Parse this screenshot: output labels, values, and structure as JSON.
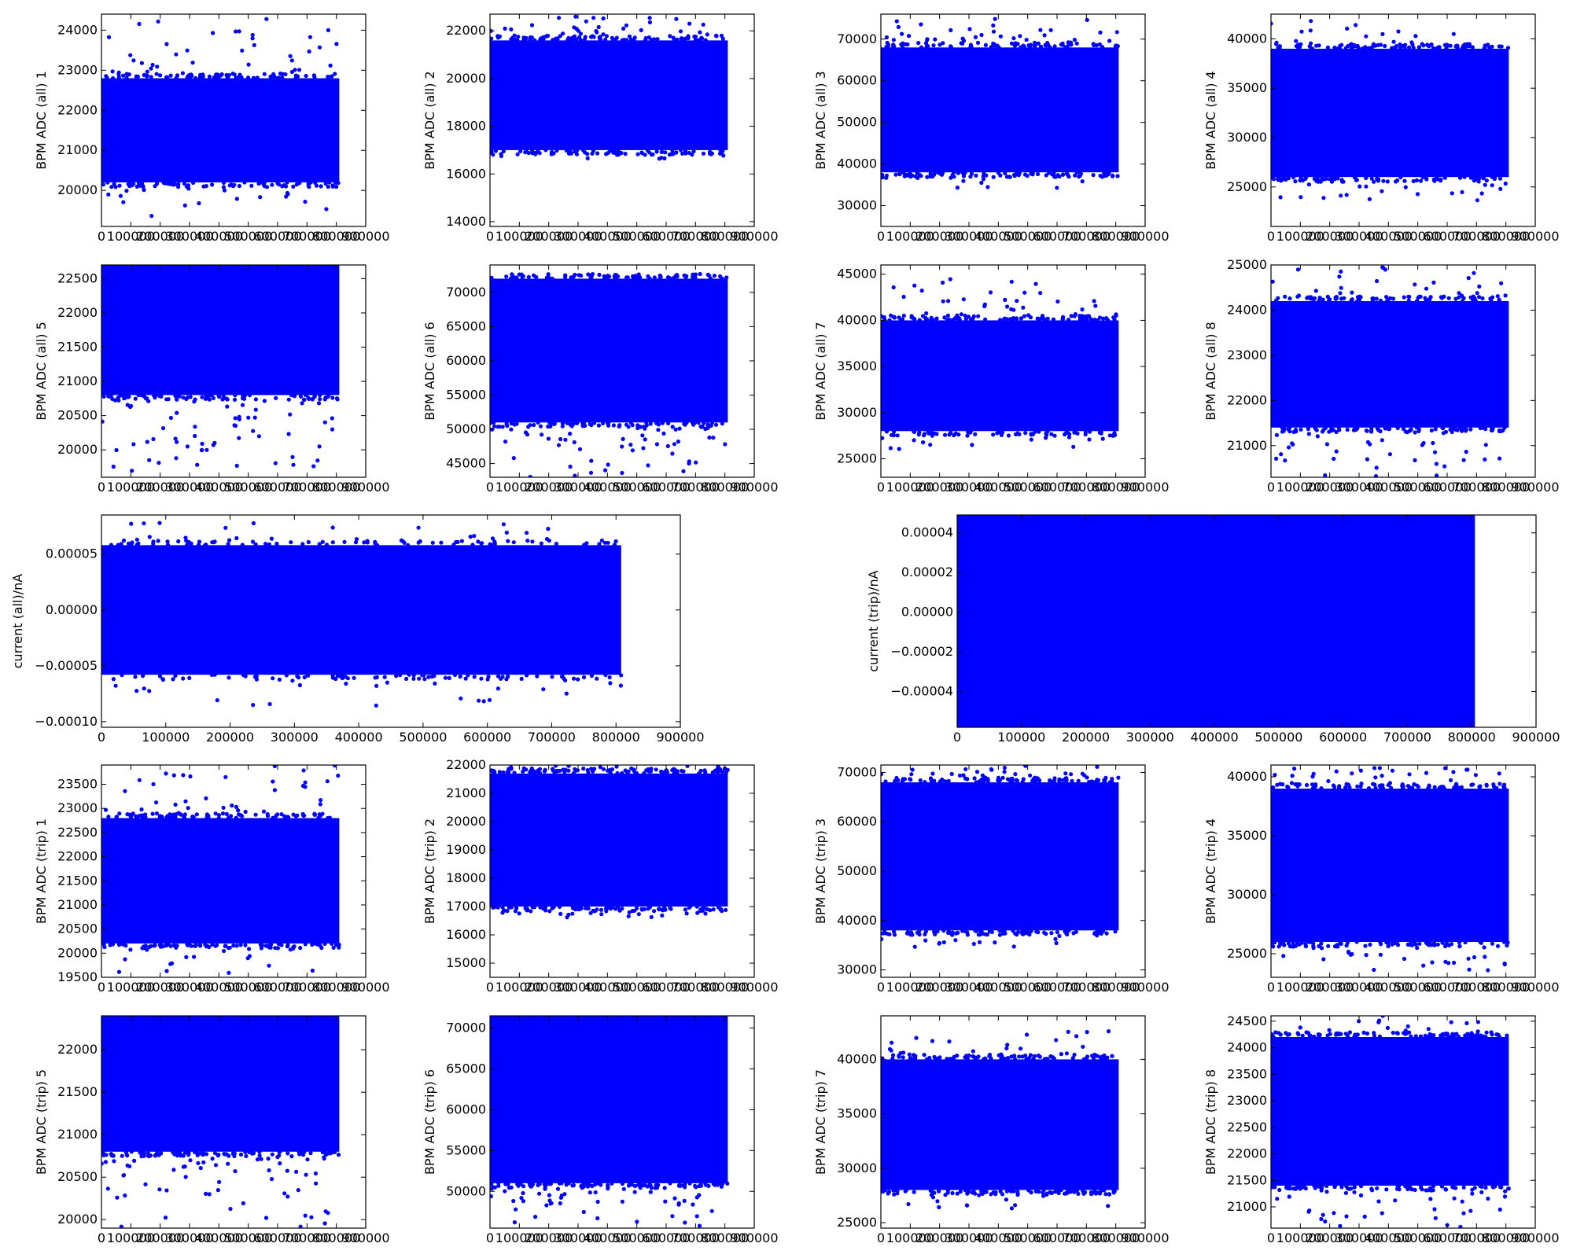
{
  "figure": {
    "background": "#ffffff",
    "point_color": "#0000ff"
  },
  "chart_data": [
    {
      "type": "scatter",
      "ylabel": "BPM ADC (all) 1",
      "xlim": [
        0,
        900000
      ],
      "ylim": [
        19100,
        24400
      ],
      "x_ticks": [
        0,
        100000,
        200000,
        300000,
        400000,
        500000,
        600000,
        700000,
        800000,
        900000
      ],
      "x_tick_labels": [
        "0",
        "100000",
        "200000",
        "300000",
        "400000",
        "500000",
        "600000",
        "700000",
        "800000",
        "900000"
      ],
      "y_ticks": [
        20000,
        21000,
        22000,
        23000,
        24000
      ],
      "y_tick_labels": [
        "20000",
        "21000",
        "22000",
        "23000",
        "24000"
      ],
      "x_range": [
        0,
        810000
      ],
      "core_band": [
        20200,
        22800
      ],
      "outlier_range": [
        19300,
        24300
      ],
      "series_color": "#0000ff"
    },
    {
      "type": "scatter",
      "ylabel": "BPM ADC (all) 2",
      "xlim": [
        0,
        900000
      ],
      "ylim": [
        13800,
        22700
      ],
      "x_ticks": [
        0,
        100000,
        200000,
        300000,
        400000,
        500000,
        600000,
        700000,
        800000,
        900000
      ],
      "x_tick_labels": [
        "0",
        "100000",
        "200000",
        "300000",
        "400000",
        "500000",
        "600000",
        "700000",
        "800000",
        "900000"
      ],
      "y_ticks": [
        14000,
        16000,
        18000,
        20000,
        22000
      ],
      "y_tick_labels": [
        "14000",
        "16000",
        "18000",
        "20000",
        "22000"
      ],
      "x_range": [
        0,
        810000
      ],
      "core_band": [
        17000,
        21600
      ],
      "outlier_range": [
        16600,
        22600
      ],
      "series_color": "#0000ff"
    },
    {
      "type": "scatter",
      "ylabel": "BPM ADC (all) 3",
      "xlim": [
        0,
        900000
      ],
      "ylim": [
        25000,
        76000
      ],
      "x_ticks": [
        0,
        100000,
        200000,
        300000,
        400000,
        500000,
        600000,
        700000,
        800000,
        900000
      ],
      "x_tick_labels": [
        "0",
        "100000",
        "200000",
        "300000",
        "400000",
        "500000",
        "600000",
        "700000",
        "800000",
        "900000"
      ],
      "y_ticks": [
        30000,
        40000,
        50000,
        60000,
        70000
      ],
      "y_tick_labels": [
        "30000",
        "40000",
        "50000",
        "60000",
        "70000"
      ],
      "x_range": [
        0,
        810000
      ],
      "core_band": [
        38000,
        68000
      ],
      "outlier_range": [
        34000,
        75000
      ],
      "series_color": "#0000ff"
    },
    {
      "type": "scatter",
      "ylabel": "BPM ADC (all) 4",
      "xlim": [
        0,
        900000
      ],
      "ylim": [
        21000,
        42500
      ],
      "x_ticks": [
        0,
        100000,
        200000,
        300000,
        400000,
        500000,
        600000,
        700000,
        800000,
        900000
      ],
      "x_tick_labels": [
        "0",
        "100000",
        "200000",
        "300000",
        "400000",
        "500000",
        "600000",
        "700000",
        "800000",
        "900000"
      ],
      "y_ticks": [
        25000,
        30000,
        35000,
        40000
      ],
      "y_tick_labels": [
        "25000",
        "30000",
        "35000",
        "40000"
      ],
      "x_range": [
        0,
        810000
      ],
      "core_band": [
        26000,
        39000
      ],
      "outlier_range": [
        23500,
        42000
      ],
      "series_color": "#0000ff"
    },
    {
      "type": "scatter",
      "ylabel": "BPM ADC (all) 5",
      "xlim": [
        0,
        900000
      ],
      "ylim": [
        19600,
        22700
      ],
      "x_ticks": [
        0,
        100000,
        200000,
        300000,
        400000,
        500000,
        600000,
        700000,
        800000,
        900000
      ],
      "x_tick_labels": [
        "0",
        "100000",
        "200000",
        "300000",
        "400000",
        "500000",
        "600000",
        "700000",
        "800000",
        "900000"
      ],
      "y_ticks": [
        20000,
        20500,
        21000,
        21500,
        22000,
        22500
      ],
      "y_tick_labels": [
        "20000",
        "20500",
        "21000",
        "21500",
        "22000",
        "22500"
      ],
      "x_range": [
        0,
        810000
      ],
      "core_band": [
        20800,
        22700
      ],
      "outlier_range": [
        19600,
        22700
      ],
      "series_color": "#0000ff"
    },
    {
      "type": "scatter",
      "ylabel": "BPM ADC (all) 6",
      "xlim": [
        0,
        900000
      ],
      "ylim": [
        43000,
        74000
      ],
      "x_ticks": [
        0,
        100000,
        200000,
        300000,
        400000,
        500000,
        600000,
        700000,
        800000,
        900000
      ],
      "x_tick_labels": [
        "0",
        "100000",
        "200000",
        "300000",
        "400000",
        "500000",
        "600000",
        "700000",
        "800000",
        "900000"
      ],
      "y_ticks": [
        45000,
        50000,
        55000,
        60000,
        65000,
        70000
      ],
      "y_tick_labels": [
        "45000",
        "50000",
        "55000",
        "60000",
        "65000",
        "70000"
      ],
      "x_range": [
        0,
        810000
      ],
      "core_band": [
        51000,
        72000
      ],
      "outlier_range": [
        43000,
        74000
      ],
      "series_color": "#0000ff"
    },
    {
      "type": "scatter",
      "ylabel": "BPM ADC (all) 7",
      "xlim": [
        0,
        900000
      ],
      "ylim": [
        23000,
        46000
      ],
      "x_ticks": [
        0,
        100000,
        200000,
        300000,
        400000,
        500000,
        600000,
        700000,
        800000,
        900000
      ],
      "x_tick_labels": [
        "0",
        "100000",
        "200000",
        "300000",
        "400000",
        "500000",
        "600000",
        "700000",
        "800000",
        "900000"
      ],
      "y_ticks": [
        25000,
        30000,
        35000,
        40000,
        45000
      ],
      "y_tick_labels": [
        "25000",
        "30000",
        "35000",
        "40000",
        "45000"
      ],
      "x_range": [
        0,
        810000
      ],
      "core_band": [
        28000,
        40000
      ],
      "outlier_range": [
        26000,
        44500
      ],
      "series_color": "#0000ff"
    },
    {
      "type": "scatter",
      "ylabel": "BPM ADC (all) 8",
      "xlim": [
        0,
        900000
      ],
      "ylim": [
        20300,
        25000
      ],
      "x_ticks": [
        0,
        100000,
        200000,
        300000,
        400000,
        500000,
        600000,
        700000,
        800000,
        900000
      ],
      "x_tick_labels": [
        "0",
        "100000",
        "200000",
        "300000",
        "400000",
        "500000",
        "600000",
        "700000",
        "800000",
        "900000"
      ],
      "y_ticks": [
        21000,
        22000,
        23000,
        24000,
        25000
      ],
      "y_tick_labels": [
        "21000",
        "22000",
        "23000",
        "24000",
        "25000"
      ],
      "x_range": [
        0,
        810000
      ],
      "core_band": [
        21400,
        24200
      ],
      "outlier_range": [
        20300,
        25000
      ],
      "series_color": "#0000ff"
    },
    {
      "type": "scatter",
      "ylabel": "current (all)/nA",
      "xlim": [
        0,
        900000
      ],
      "ylim": [
        -0.000105,
        8.5e-05
      ],
      "x_ticks": [
        0,
        100000,
        200000,
        300000,
        400000,
        500000,
        600000,
        700000,
        800000,
        900000
      ],
      "x_tick_labels": [
        "0",
        "100000",
        "200000",
        "300000",
        "400000",
        "500000",
        "600000",
        "700000",
        "800000",
        "900000"
      ],
      "y_ticks": [
        -0.0001,
        -5e-05,
        0,
        5e-05
      ],
      "y_tick_labels": [
        "−0.00010",
        "−0.00005",
        "0.00000",
        "0.00005"
      ],
      "x_range": [
        0,
        808000
      ],
      "core_band": [
        -5.8e-05,
        5.8e-05
      ],
      "outlier_range": [
        -8.6e-05,
        7.8e-05
      ],
      "series_color": "#0000ff"
    },
    {
      "type": "scatter",
      "ylabel": "current (trip)/nA",
      "xlim": [
        0,
        900000
      ],
      "ylim": [
        -5.8e-05,
        4.9e-05
      ],
      "x_ticks": [
        0,
        100000,
        200000,
        300000,
        400000,
        500000,
        600000,
        700000,
        800000,
        900000
      ],
      "x_tick_labels": [
        "0",
        "100000",
        "200000",
        "300000",
        "400000",
        "500000",
        "600000",
        "700000",
        "800000",
        "900000"
      ],
      "y_ticks": [
        -4e-05,
        -2e-05,
        0,
        2e-05,
        4e-05
      ],
      "y_tick_labels": [
        "−0.00004",
        "−0.00002",
        "0.00000",
        "0.00002",
        "0.00004"
      ],
      "x_range": [
        0,
        805000
      ],
      "core_band": [
        -5.8e-05,
        4.9e-05
      ],
      "outlier_range": [
        -5.8e-05,
        4.9e-05
      ],
      "series_color": "#0000ff"
    },
    {
      "type": "scatter",
      "ylabel": "BPM ADC (trip) 1",
      "xlim": [
        0,
        900000
      ],
      "ylim": [
        19500,
        23900
      ],
      "x_ticks": [
        0,
        100000,
        200000,
        300000,
        400000,
        500000,
        600000,
        700000,
        800000,
        900000
      ],
      "x_tick_labels": [
        "0",
        "100000",
        "200000",
        "300000",
        "400000",
        "500000",
        "600000",
        "700000",
        "800000",
        "900000"
      ],
      "y_ticks": [
        19500,
        20000,
        20500,
        21000,
        21500,
        22000,
        22500,
        23000,
        23500
      ],
      "y_tick_labels": [
        "19500",
        "20000",
        "20500",
        "21000",
        "21500",
        "22000",
        "22500",
        "23000",
        "23500"
      ],
      "x_range": [
        0,
        810000
      ],
      "core_band": [
        20200,
        22800
      ],
      "outlier_range": [
        19500,
        23900
      ],
      "series_color": "#0000ff"
    },
    {
      "type": "scatter",
      "ylabel": "BPM ADC (trip) 2",
      "xlim": [
        0,
        900000
      ],
      "ylim": [
        14500,
        22000
      ],
      "x_ticks": [
        0,
        100000,
        200000,
        300000,
        400000,
        500000,
        600000,
        700000,
        800000,
        900000
      ],
      "x_tick_labels": [
        "0",
        "100000",
        "200000",
        "300000",
        "400000",
        "500000",
        "600000",
        "700000",
        "800000",
        "900000"
      ],
      "y_ticks": [
        15000,
        16000,
        17000,
        18000,
        19000,
        20000,
        21000,
        22000
      ],
      "y_tick_labels": [
        "15000",
        "16000",
        "17000",
        "18000",
        "19000",
        "20000",
        "21000",
        "22000"
      ],
      "x_range": [
        0,
        810000
      ],
      "core_band": [
        17000,
        21700
      ],
      "outlier_range": [
        16600,
        22000
      ],
      "series_color": "#0000ff"
    },
    {
      "type": "scatter",
      "ylabel": "BPM ADC (trip) 3",
      "xlim": [
        0,
        900000
      ],
      "ylim": [
        28500,
        71500
      ],
      "x_ticks": [
        0,
        100000,
        200000,
        300000,
        400000,
        500000,
        600000,
        700000,
        800000,
        900000
      ],
      "x_tick_labels": [
        "0",
        "100000",
        "200000",
        "300000",
        "400000",
        "500000",
        "600000",
        "700000",
        "800000",
        "900000"
      ],
      "y_ticks": [
        30000,
        40000,
        50000,
        60000,
        70000
      ],
      "y_tick_labels": [
        "30000",
        "40000",
        "50000",
        "60000",
        "70000"
      ],
      "x_range": [
        0,
        810000
      ],
      "core_band": [
        38000,
        68000
      ],
      "outlier_range": [
        34500,
        71500
      ],
      "series_color": "#0000ff"
    },
    {
      "type": "scatter",
      "ylabel": "BPM ADC (trip) 4",
      "xlim": [
        0,
        900000
      ],
      "ylim": [
        23000,
        41000
      ],
      "x_ticks": [
        0,
        100000,
        200000,
        300000,
        400000,
        500000,
        600000,
        700000,
        800000,
        900000
      ],
      "x_tick_labels": [
        "0",
        "100000",
        "200000",
        "300000",
        "400000",
        "500000",
        "600000",
        "700000",
        "800000",
        "900000"
      ],
      "y_ticks": [
        25000,
        30000,
        35000,
        40000
      ],
      "y_tick_labels": [
        "25000",
        "30000",
        "35000",
        "40000"
      ],
      "x_range": [
        0,
        810000
      ],
      "core_band": [
        26000,
        39000
      ],
      "outlier_range": [
        23500,
        40800
      ],
      "series_color": "#0000ff"
    },
    {
      "type": "scatter",
      "ylabel": "BPM ADC (trip) 5",
      "xlim": [
        0,
        900000
      ],
      "ylim": [
        19900,
        22400
      ],
      "x_ticks": [
        0,
        100000,
        200000,
        300000,
        400000,
        500000,
        600000,
        700000,
        800000,
        900000
      ],
      "x_tick_labels": [
        "0",
        "100000",
        "200000",
        "300000",
        "400000",
        "500000",
        "600000",
        "700000",
        "800000",
        "900000"
      ],
      "y_ticks": [
        20000,
        20500,
        21000,
        21500,
        22000
      ],
      "y_tick_labels": [
        "20000",
        "20500",
        "21000",
        "21500",
        "22000"
      ],
      "x_range": [
        0,
        810000
      ],
      "core_band": [
        20800,
        22400
      ],
      "outlier_range": [
        19900,
        22400
      ],
      "series_color": "#0000ff"
    },
    {
      "type": "scatter",
      "ylabel": "BPM ADC (trip) 6",
      "xlim": [
        0,
        900000
      ],
      "ylim": [
        45500,
        71500
      ],
      "x_ticks": [
        0,
        100000,
        200000,
        300000,
        400000,
        500000,
        600000,
        700000,
        800000,
        900000
      ],
      "x_tick_labels": [
        "0",
        "100000",
        "200000",
        "300000",
        "400000",
        "500000",
        "600000",
        "700000",
        "800000",
        "900000"
      ],
      "y_ticks": [
        50000,
        55000,
        60000,
        65000,
        70000
      ],
      "y_tick_labels": [
        "50000",
        "55000",
        "60000",
        "65000",
        "70000"
      ],
      "x_range": [
        0,
        810000
      ],
      "core_band": [
        51000,
        71500
      ],
      "outlier_range": [
        45500,
        71500
      ],
      "series_color": "#0000ff"
    },
    {
      "type": "scatter",
      "ylabel": "BPM ADC (trip) 7",
      "xlim": [
        0,
        900000
      ],
      "ylim": [
        24500,
        44000
      ],
      "x_ticks": [
        0,
        100000,
        200000,
        300000,
        400000,
        500000,
        600000,
        700000,
        800000,
        900000
      ],
      "x_tick_labels": [
        "0",
        "100000",
        "200000",
        "300000",
        "400000",
        "500000",
        "600000",
        "700000",
        "800000",
        "900000"
      ],
      "y_ticks": [
        25000,
        30000,
        35000,
        40000
      ],
      "y_tick_labels": [
        "25000",
        "30000",
        "35000",
        "40000"
      ],
      "x_range": [
        0,
        810000
      ],
      "core_band": [
        28000,
        40000
      ],
      "outlier_range": [
        26000,
        42800
      ],
      "series_color": "#0000ff"
    },
    {
      "type": "scatter",
      "ylabel": "BPM ADC (trip) 8",
      "xlim": [
        0,
        900000
      ],
      "ylim": [
        20600,
        24600
      ],
      "x_ticks": [
        0,
        100000,
        200000,
        300000,
        400000,
        500000,
        600000,
        700000,
        800000,
        900000
      ],
      "x_tick_labels": [
        "0",
        "100000",
        "200000",
        "300000",
        "400000",
        "500000",
        "600000",
        "700000",
        "800000",
        "900000"
      ],
      "y_ticks": [
        21000,
        21500,
        22000,
        22500,
        23000,
        23500,
        24000,
        24500
      ],
      "y_tick_labels": [
        "21000",
        "21500",
        "22000",
        "22500",
        "23000",
        "23500",
        "24000",
        "24500"
      ],
      "x_range": [
        0,
        810000
      ],
      "core_band": [
        21400,
        24200
      ],
      "outlier_range": [
        20600,
        24600
      ],
      "series_color": "#0000ff"
    }
  ]
}
